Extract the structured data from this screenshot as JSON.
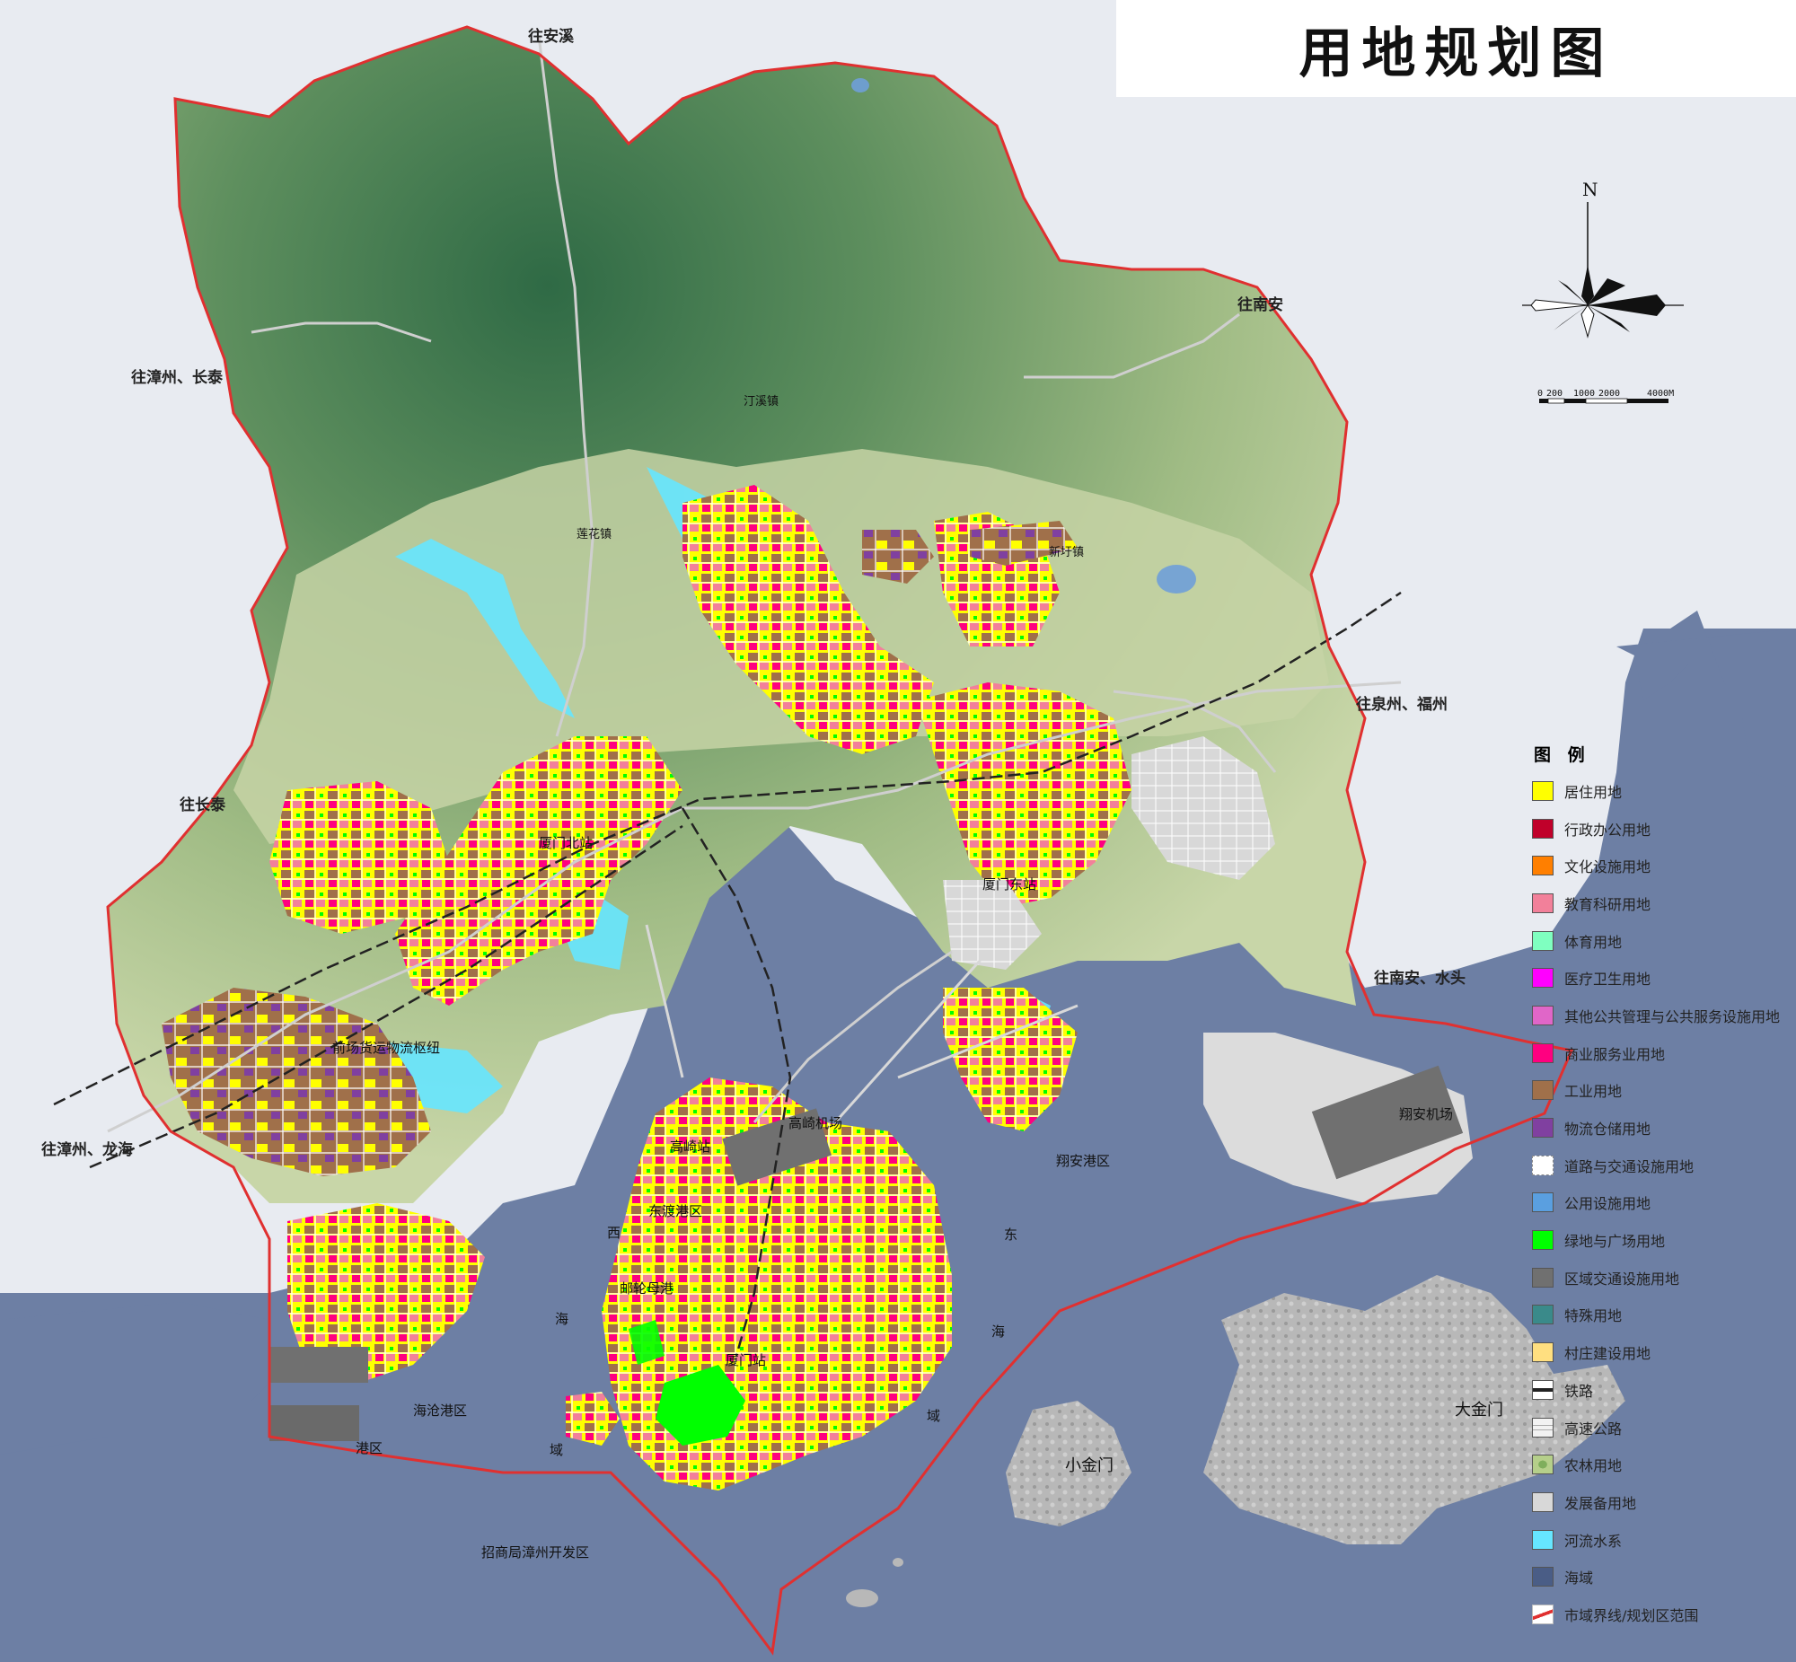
{
  "title": "用地规划图",
  "compass": {
    "north_label": "N"
  },
  "scale_bar": {
    "labels": [
      "0",
      "200",
      "1000",
      "2000",
      "4000M"
    ]
  },
  "direction_labels": {
    "anxi": "往安溪",
    "nanan": "往南安",
    "zhangzhou_changtai": "往漳州、长泰",
    "changtai": "往长泰",
    "quanzhou_fuzhou": "往泉州、福州",
    "nanan_shuitou": "往南安、水头",
    "zhangzhou_longhai": "往漳州、龙海"
  },
  "place_labels": {
    "tingxi": "汀溪镇",
    "lianhua": "莲花镇",
    "xinxu": "新圩镇",
    "xiamen_north": "厦门北站",
    "xiamen_east": "厦门东站",
    "qianchang": "前场货运物流枢纽",
    "gaoqi_airport": "高崎机场",
    "gaoqi_station": "高崎站",
    "dongdu": "东渡港区",
    "cruise": "邮轮母港",
    "xiamen_station": "厦门站",
    "haicang_port": "海沧港区",
    "xiangan_port": "翔安港区",
    "xiangan_airport": "翔安机场",
    "zhaoshang": "招商局漳州开发区",
    "small_kinmen": "小金门",
    "big_kinmen": "大金门",
    "port_sw": "港区"
  },
  "sea_labels": {
    "west": [
      "西",
      "海",
      "域"
    ],
    "east": [
      "东",
      "海",
      "域"
    ]
  },
  "legend": {
    "title": "图 例",
    "items": [
      {
        "label": "居住用地",
        "color": "#ffff00",
        "style": "fill"
      },
      {
        "label": "行政办公用地",
        "color": "#c0002a",
        "style": "fill"
      },
      {
        "label": "文化设施用地",
        "color": "#ff7f00",
        "style": "fill"
      },
      {
        "label": "教育科研用地",
        "color": "#f2809a",
        "style": "fill"
      },
      {
        "label": "体育用地",
        "color": "#7fffc0",
        "style": "fill"
      },
      {
        "label": "医疗卫生用地",
        "color": "#ff00ff",
        "style": "fill"
      },
      {
        "label": "其他公共管理与公共服务设施用地",
        "color": "#e066c8",
        "style": "fill"
      },
      {
        "label": "商业服务业用地",
        "color": "#ff0080",
        "style": "fill"
      },
      {
        "label": "工业用地",
        "color": "#a0704a",
        "style": "fill"
      },
      {
        "label": "物流仓储用地",
        "color": "#8040a0",
        "style": "fill"
      },
      {
        "label": "道路与交通设施用地",
        "color": "#ffffff",
        "style": "road"
      },
      {
        "label": "公用设施用地",
        "color": "#5a9fe0",
        "style": "fill"
      },
      {
        "label": "绿地与广场用地",
        "color": "#00ff00",
        "style": "fill"
      },
      {
        "label": "区域交通设施用地",
        "color": "#707070",
        "style": "fill"
      },
      {
        "label": "特殊用地",
        "color": "#3a8a8a",
        "style": "fill"
      },
      {
        "label": "村庄建设用地",
        "color": "#ffdf80",
        "style": "fill"
      },
      {
        "label": "铁路",
        "color": "#222222",
        "style": "rail"
      },
      {
        "label": "高速公路",
        "color": "#dddddd",
        "style": "highway"
      },
      {
        "label": "农林用地",
        "color": "#b5cf8a",
        "style": "farm"
      },
      {
        "label": "发展备用地",
        "color": "#d8d8d8",
        "style": "fill"
      },
      {
        "label": "河流水系",
        "color": "#66e6ff",
        "style": "fill"
      },
      {
        "label": "海域",
        "color": "#4a5d86",
        "style": "fill"
      },
      {
        "label": "市域界线/规划区范围",
        "color": "#e03030",
        "style": "line"
      }
    ]
  },
  "colors": {
    "sea": "#6d7fa4",
    "background": "#e8ebf1",
    "mountain_dark": "#2f6a45",
    "mountain_mid": "#6a9a68",
    "lowland": "#b9c89a",
    "boundary": "#e03030"
  }
}
